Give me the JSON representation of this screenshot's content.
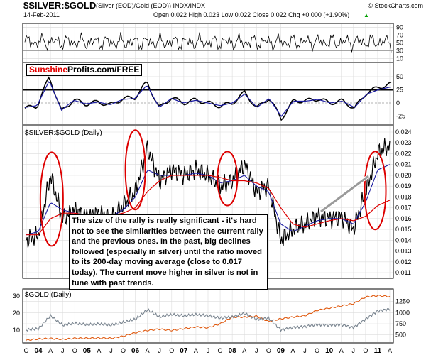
{
  "header": {
    "symbol": "$SILVER:$GOLD",
    "subtitle": "(Silver (EOD)/Gold (EOD))  INDX/INDX",
    "copyright": "© StockCharts.com",
    "date": "14-Feb-2011",
    "ohlc": "Open 0.022  High 0.023  Low 0.022  Close 0.022  Chg +0.000 (+1.90%)",
    "chg_arrow": "▲"
  },
  "panels": {
    "rsi": {
      "ticks": [
        "90",
        "70",
        "50",
        "30",
        "10"
      ]
    },
    "macd": {
      "ticks": [
        "50",
        "25",
        "0",
        "-25"
      ]
    },
    "main": {
      "label": "$SILVER:$GOLD (Daily)",
      "ticks": [
        "0.024",
        "0.023",
        "0.022",
        "0.021",
        "0.020",
        "0.019",
        "0.018",
        "0.017",
        "0.016",
        "0.015",
        "0.014",
        "0.013",
        "0.012",
        "0.011"
      ]
    },
    "gold": {
      "label": "$GOLD (Daily)",
      "left_ticks": [
        "30",
        "20",
        "10"
      ],
      "right_ticks": [
        "1250",
        "1000",
        "750",
        "500"
      ]
    }
  },
  "watermark": {
    "part1": "Sunshine",
    "part2": "Profits.com/FREE"
  },
  "annotation": "The size of the rally is really significant - it's hard not to see the similarities between the current rally and the previous ones. In the past, big declines followed (especially in silver) until the ratio moved to its 200-day moving average (close to 0.017 today). The current move higher in silver is not in tune with past trends.",
  "xaxis": [
    "O",
    "04",
    "A",
    "J",
    "O",
    "05",
    "A",
    "J",
    "O",
    "06",
    "A",
    "J",
    "O",
    "07",
    "A",
    "J",
    "O",
    "08",
    "A",
    "J",
    "O",
    "09",
    "A",
    "J",
    "O",
    "10",
    "A",
    "J",
    "O",
    "11",
    "A"
  ],
  "colors": {
    "price": "#000000",
    "ma_fast": "#1a1aa0",
    "ma_slow": "#dd0000",
    "ellipse": "#dd0000",
    "arrow": "#9a9a9a",
    "gold_line": "#e05a10",
    "ratio_line": "#7a8590"
  },
  "chart_data": {
    "type": "line",
    "title": "$SILVER:$GOLD",
    "ylim": [
      0.011,
      0.024
    ],
    "x": [
      "2003-10",
      "2004-01",
      "2004-04",
      "2004-07",
      "2004-10",
      "2005-01",
      "2005-04",
      "2005-07",
      "2005-10",
      "2006-01",
      "2006-04",
      "2006-07",
      "2006-10",
      "2007-01",
      "2007-04",
      "2007-07",
      "2007-10",
      "2008-01",
      "2008-04",
      "2008-07",
      "2008-10",
      "2009-01",
      "2009-04",
      "2009-07",
      "2009-10",
      "2010-01",
      "2010-04",
      "2010-07",
      "2010-10",
      "2011-01",
      "2011-02"
    ],
    "series": [
      {
        "values": [
          0.014,
          0.0145,
          0.02,
          0.016,
          0.0168,
          0.0162,
          0.0165,
          0.016,
          0.0172,
          0.0185,
          0.0225,
          0.0195,
          0.0205,
          0.02,
          0.0205,
          0.02,
          0.019,
          0.0195,
          0.021,
          0.0185,
          0.019,
          0.014,
          0.015,
          0.0155,
          0.0162,
          0.016,
          0.0162,
          0.015,
          0.0185,
          0.022,
          0.0228
        ]
      },
      {
        "values": [
          0.0145,
          0.0148,
          0.0175,
          0.0168,
          0.0165,
          0.0163,
          0.0164,
          0.0162,
          0.0168,
          0.018,
          0.0205,
          0.02,
          0.02,
          0.02,
          0.0202,
          0.02,
          0.0193,
          0.0195,
          0.02,
          0.019,
          0.0185,
          0.0155,
          0.0148,
          0.0153,
          0.0158,
          0.016,
          0.016,
          0.0155,
          0.0175,
          0.0205,
          0.021
        ]
      },
      {
        "values": [
          0.0145,
          0.0145,
          0.016,
          0.0165,
          0.0165,
          0.0163,
          0.0164,
          0.0163,
          0.0165,
          0.017,
          0.0185,
          0.0195,
          0.02,
          0.02,
          0.02,
          0.02,
          0.0198,
          0.0195,
          0.0195,
          0.0193,
          0.0188,
          0.017,
          0.0155,
          0.0152,
          0.0155,
          0.0158,
          0.016,
          0.0158,
          0.0162,
          0.0172,
          0.0177
        ]
      }
    ],
    "gold_series": {
      "right_ylim": [
        400,
        1450
      ],
      "values": [
        380,
        410,
        420,
        400,
        425,
        425,
        430,
        425,
        470,
        550,
        600,
        630,
        600,
        640,
        680,
        660,
        750,
        900,
        900,
        920,
        800,
        860,
        900,
        930,
        1050,
        1100,
        1150,
        1200,
        1350,
        1380,
        1360
      ]
    }
  }
}
